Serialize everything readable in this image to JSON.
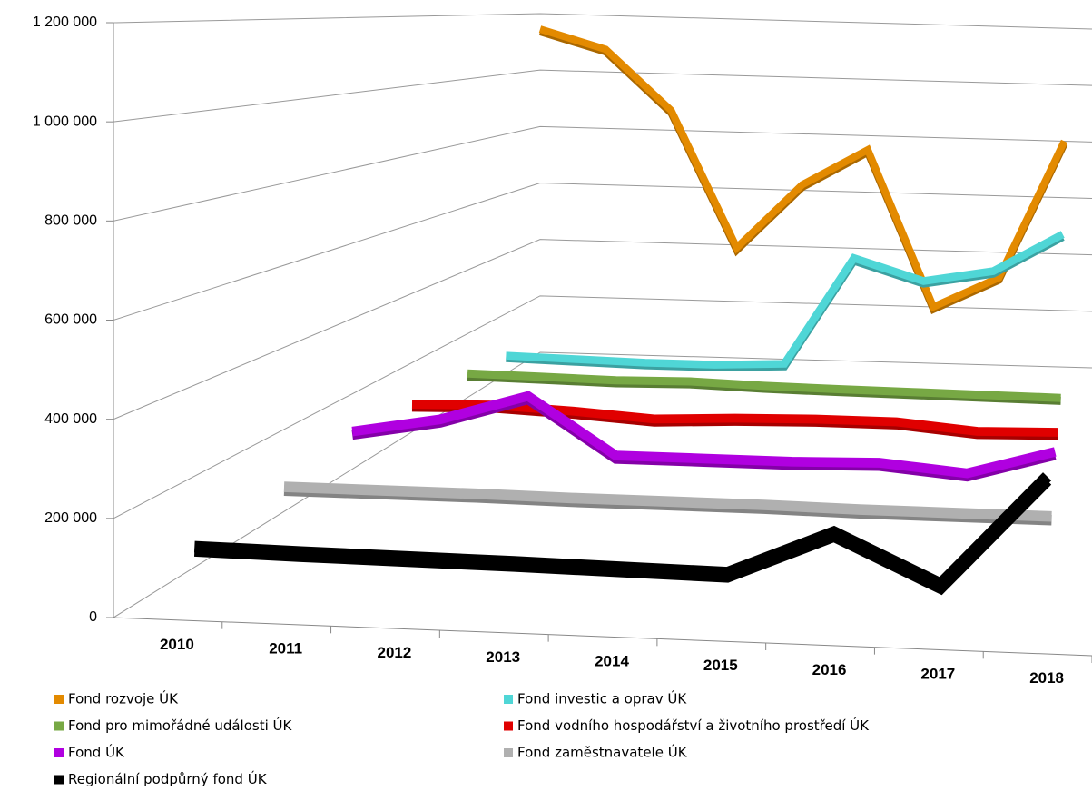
{
  "chart_data": {
    "type": "line3d",
    "categories": [
      "2010",
      "2011",
      "2012",
      "2013",
      "2014",
      "2015",
      "2016",
      "2017",
      "2018"
    ],
    "ylim": [
      0,
      1200000
    ],
    "yticks": [
      0,
      {
        "value": 200000,
        "label": "200 000"
      },
      {
        "value": 400000,
        "label": "400 000"
      },
      {
        "value": 600000,
        "label": "600 000"
      },
      {
        "value": 800000,
        "label": "800 000"
      },
      {
        "value": 1000000,
        "label": "1 000 000"
      },
      {
        "value": 1200000,
        "label": "1 200 000"
      }
    ],
    "grid": true,
    "series": [
      {
        "name": "Fond rozvoje ÚK",
        "color": "#e38a00",
        "values": [
          1145000,
          1080000,
          870000,
          390000,
          620000,
          750000,
          200000,
          310000,
          800000
        ]
      },
      {
        "name": "Fond investic a oprav ÚK",
        "color": "#4fd6d6",
        "values": [
          60000,
          55000,
          50000,
          50000,
          60000,
          420000,
          350000,
          390000,
          520000
        ]
      },
      {
        "name": "Fond pro mimořádné události ÚK",
        "color": "#77a844",
        "values": [
          75000,
          72000,
          68000,
          72000,
          65000,
          62000,
          60000,
          58000,
          56000
        ]
      },
      {
        "name": "Fond vodního hospodářství a životního prostředí ÚK",
        "color": "#e00000",
        "values": [
          80000,
          85000,
          75000,
          60000,
          70000,
          75000,
          75000,
          55000,
          60000
        ]
      },
      {
        "name": "Fond ÚK",
        "color": "#b000e0",
        "values": [
          100000,
          140000,
          210000,
          60000,
          60000,
          60000,
          65000,
          45000,
          110000
        ]
      },
      {
        "name": "Fond zaměstnavatele ÚK",
        "color": "#b0b0b0",
        "values": [
          60000,
          60000,
          60000,
          58000,
          58000,
          58000,
          55000,
          55000,
          55000
        ]
      },
      {
        "name": "Regionální podpůrný fond ÚK",
        "color": "#000000",
        "values": [
          45000,
          42000,
          40000,
          38000,
          35000,
          32000,
          130000,
          25000,
          270000
        ]
      }
    ]
  }
}
